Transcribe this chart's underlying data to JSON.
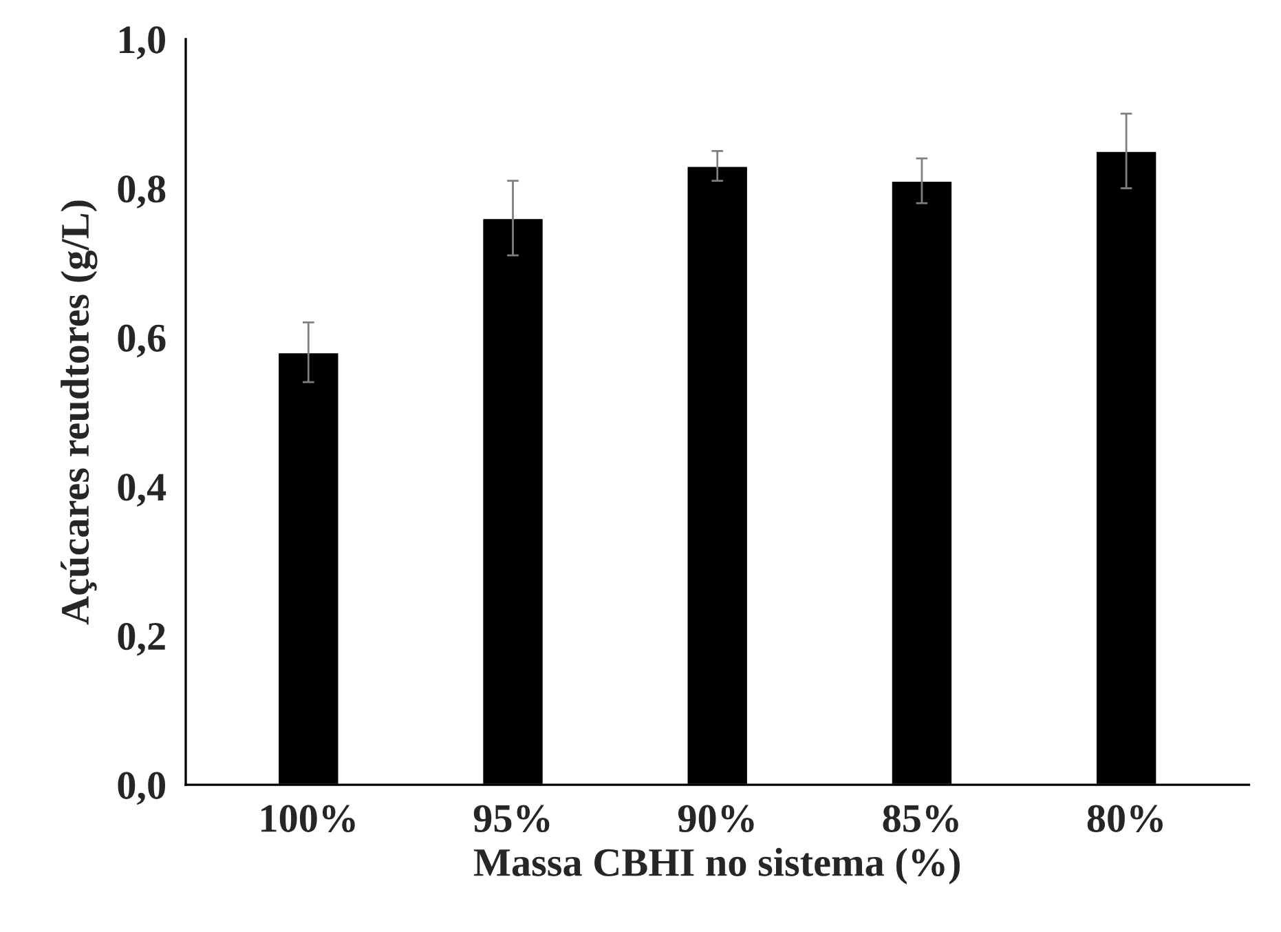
{
  "chart_data": {
    "type": "bar",
    "xlabel": "Massa CBHI no sistema (%)",
    "ylabel": "Açúcares reudtores (g/L)",
    "categories": [
      "100%",
      "95%",
      "90%",
      "85%",
      "80%"
    ],
    "values": [
      0.58,
      0.76,
      0.83,
      0.81,
      0.85
    ],
    "errors": [
      0.04,
      0.05,
      0.02,
      0.03,
      0.05
    ],
    "color": "#000000",
    "ylim": [
      0,
      1.0
    ],
    "yticks": [
      {
        "value": 0,
        "label": "0,0"
      },
      {
        "value": 0.2,
        "label": "0,2"
      },
      {
        "value": 0.4,
        "label": "0,4"
      },
      {
        "value": 0.6,
        "label": "0,6"
      },
      {
        "value": 0.8,
        "label": "0,8"
      },
      {
        "value": 1.0,
        "label": "1,0"
      }
    ],
    "grid": false
  }
}
